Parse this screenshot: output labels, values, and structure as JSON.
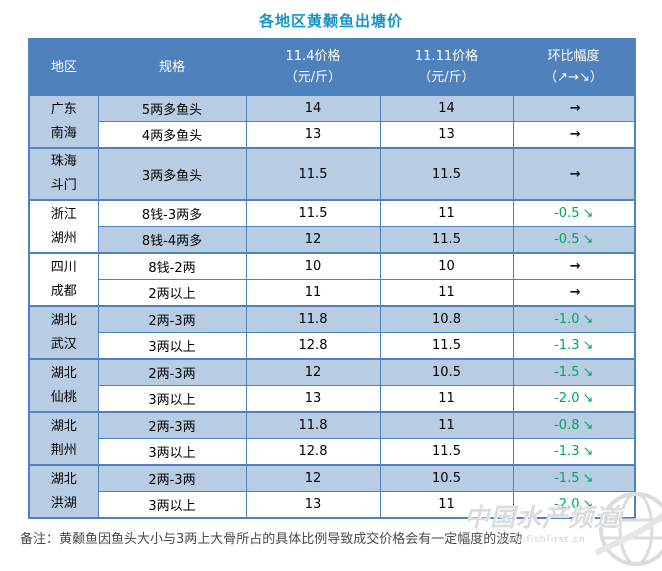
{
  "title": "各地区黄颡鱼出塘价",
  "colors": {
    "header_bg": "#4F81BD",
    "row_blue": "#B8CCE4",
    "row_white": "#FFFFFF",
    "border_blue": "#4F81BD",
    "title_color": "#1894C8",
    "decline_green": "#00A85D",
    "flat_arrow_black": "#111111",
    "watermark_gray": "#DCDCDC"
  },
  "table": {
    "headers": [
      {
        "line1": "地区",
        "line2": ""
      },
      {
        "line1": "规格",
        "line2": ""
      },
      {
        "line1": "11.4价格",
        "line2": "（元/斤）"
      },
      {
        "line1": "11.11价格",
        "line2": "（元/斤）"
      },
      {
        "line1": "环比幅度",
        "line2": "（↗→↘）"
      }
    ],
    "groups": [
      {
        "region": [
          "广东",
          "南海"
        ],
        "region_bg": "blue",
        "rows": [
          {
            "spec": "5两多鱼头",
            "price_nov4": "14",
            "price_nov11": "14",
            "change_value": "",
            "change_arrow": "→",
            "trend": "flat",
            "bg": "blue",
            "tall": false
          },
          {
            "spec": "4两多鱼头",
            "price_nov4": "13",
            "price_nov11": "13",
            "change_value": "",
            "change_arrow": "→",
            "trend": "flat",
            "bg": "white",
            "tall": false
          }
        ]
      },
      {
        "region": [
          "珠海",
          "斗门"
        ],
        "region_bg": "blue",
        "rows": [
          {
            "spec": "3两多鱼头",
            "price_nov4": "11.5",
            "price_nov11": "11.5",
            "change_value": "",
            "change_arrow": "→",
            "trend": "flat",
            "bg": "blue",
            "tall": true
          }
        ]
      },
      {
        "region": [
          "浙江",
          "湖州"
        ],
        "region_bg": "white",
        "rows": [
          {
            "spec": "8钱-3两多",
            "price_nov4": "11.5",
            "price_nov11": "11",
            "change_value": "-0.5",
            "change_arrow": "↘",
            "trend": "down",
            "bg": "white",
            "tall": false
          },
          {
            "spec": "8钱-4两多",
            "price_nov4": "12",
            "price_nov11": "11.5",
            "change_value": "-0.5",
            "change_arrow": "↘",
            "trend": "down",
            "bg": "blue",
            "tall": false
          }
        ]
      },
      {
        "region": [
          "四川",
          "成都"
        ],
        "region_bg": "white",
        "rows": [
          {
            "spec": "8钱-2两",
            "price_nov4": "10",
            "price_nov11": "10",
            "change_value": "",
            "change_arrow": "→",
            "trend": "flat",
            "bg": "white",
            "tall": false
          },
          {
            "spec": "2两以上",
            "price_nov4": "11",
            "price_nov11": "11",
            "change_value": "",
            "change_arrow": "→",
            "trend": "flat",
            "bg": "white",
            "tall": false
          }
        ]
      },
      {
        "region": [
          "湖北",
          "武汉"
        ],
        "region_bg": "blue",
        "rows": [
          {
            "spec": "2两-3两",
            "price_nov4": "11.8",
            "price_nov11": "10.8",
            "change_value": "-1.0",
            "change_arrow": "↘",
            "trend": "down",
            "bg": "blue",
            "tall": false
          },
          {
            "spec": "3两以上",
            "price_nov4": "12.8",
            "price_nov11": "11.5",
            "change_value": "-1.3",
            "change_arrow": "↘",
            "trend": "down",
            "bg": "white",
            "tall": false
          }
        ]
      },
      {
        "region": [
          "湖北",
          "仙桃"
        ],
        "region_bg": "blue",
        "rows": [
          {
            "spec": "2两-3两",
            "price_nov4": "12",
            "price_nov11": "10.5",
            "change_value": "-1.5",
            "change_arrow": "↘",
            "trend": "down",
            "bg": "blue",
            "tall": false
          },
          {
            "spec": "3两以上",
            "price_nov4": "13",
            "price_nov11": "11",
            "change_value": "-2.0",
            "change_arrow": "↘",
            "trend": "down",
            "bg": "white",
            "tall": false
          }
        ]
      },
      {
        "region": [
          "湖北",
          "荆州"
        ],
        "region_bg": "blue",
        "rows": [
          {
            "spec": "2两-3两",
            "price_nov4": "11.8",
            "price_nov11": "11",
            "change_value": "-0.8",
            "change_arrow": "↘",
            "trend": "down",
            "bg": "blue",
            "tall": false
          },
          {
            "spec": "3两以上",
            "price_nov4": "12.8",
            "price_nov11": "11.5",
            "change_value": "-1.3",
            "change_arrow": "↘",
            "trend": "down",
            "bg": "white",
            "tall": false
          }
        ]
      },
      {
        "region": [
          "湖北",
          "洪湖"
        ],
        "region_bg": "blue",
        "rows": [
          {
            "spec": "2两-3两",
            "price_nov4": "12",
            "price_nov11": "10.5",
            "change_value": "-1.5",
            "change_arrow": "↘",
            "trend": "down",
            "bg": "blue",
            "tall": false
          },
          {
            "spec": "3两以上",
            "price_nov4": "13",
            "price_nov11": "11",
            "change_value": "-2.0",
            "change_arrow": "↘",
            "trend": "down",
            "bg": "white",
            "tall": false
          }
        ]
      }
    ]
  },
  "note": {
    "label": "备注：",
    "text": "黄颡鱼因鱼头大小与3两上大骨所占的具体比例导致成交价格会有一定幅度的波动"
  },
  "watermark": {
    "site_name": "中国水产频道",
    "site_url": "www.fishfirst.cn"
  },
  "chart_data": {
    "type": "table",
    "title": "各地区黄颡鱼出塘价",
    "columns": [
      "地区",
      "规格",
      "11.4价格（元/斤）",
      "11.11价格（元/斤）",
      "环比幅度（↗→↘）"
    ],
    "rows": [
      [
        "广东南海",
        "5两多鱼头",
        14,
        14,
        "→"
      ],
      [
        "广东南海",
        "4两多鱼头",
        13,
        13,
        "→"
      ],
      [
        "珠海斗门",
        "3两多鱼头",
        11.5,
        11.5,
        "→"
      ],
      [
        "浙江湖州",
        "8钱-3两多",
        11.5,
        11,
        "-0.5↘"
      ],
      [
        "浙江湖州",
        "8钱-4两多",
        12,
        11.5,
        "-0.5↘"
      ],
      [
        "四川成都",
        "8钱-2两",
        10,
        10,
        "→"
      ],
      [
        "四川成都",
        "2两以上",
        11,
        11,
        "→"
      ],
      [
        "湖北武汉",
        "2两-3两",
        11.8,
        10.8,
        "-1.0↘"
      ],
      [
        "湖北武汉",
        "3两以上",
        12.8,
        11.5,
        "-1.3↘"
      ],
      [
        "湖北仙桃",
        "2两-3两",
        12,
        10.5,
        "-1.5↘"
      ],
      [
        "湖北仙桃",
        "3两以上",
        13,
        11,
        "-2.0↘"
      ],
      [
        "湖北荆州",
        "2两-3两",
        11.8,
        11,
        "-0.8↘"
      ],
      [
        "湖北荆州",
        "3两以上",
        12.8,
        11.5,
        "-1.3↘"
      ],
      [
        "湖北洪湖",
        "2两-3两",
        12,
        10.5,
        "-1.5↘"
      ],
      [
        "湖北洪湖",
        "3两以上",
        13,
        11,
        "-2.0↘"
      ]
    ],
    "note": "备注：黄颡鱼因鱼头大小与3两上大骨所占的具体比例导致成交价格会有一定幅度的波动"
  }
}
